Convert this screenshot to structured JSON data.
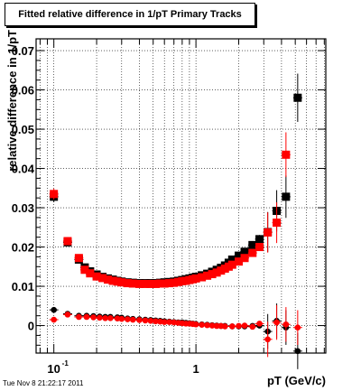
{
  "title": "Fitted relative difference in 1/pT  Primary Tracks",
  "timestamp": "Tue Nov  8 21:22:17 2011",
  "colors": {
    "series_black": "#000000",
    "series_red": "#ff0000",
    "grid": "#000000"
  },
  "chart_data": {
    "type": "scatter",
    "xlabel": "pT (GeV/c)",
    "ylabel": "relative difference in 1/pT",
    "x_scale": "log",
    "xlim": [
      0.075,
      8.2
    ],
    "ylim": [
      -0.007,
      0.073
    ],
    "x_ticks": [
      {
        "value": 0.1,
        "label": "10",
        "sup": "-1"
      },
      {
        "value": 1,
        "label": "1",
        "sup": ""
      }
    ],
    "y_ticks": [
      {
        "value": 0,
        "label": "0"
      },
      {
        "value": 0.01,
        "label": "0.01"
      },
      {
        "value": 0.02,
        "label": "0.02"
      },
      {
        "value": 0.03,
        "label": "0.03"
      },
      {
        "value": 0.04,
        "label": "0.04"
      },
      {
        "value": 0.05,
        "label": "0.05"
      },
      {
        "value": 0.06,
        "label": "0.06"
      },
      {
        "value": 0.07,
        "label": "0.07"
      }
    ],
    "grid": true,
    "series": [
      {
        "marker": "square",
        "color": "#000000",
        "points": [
          [
            0.1,
            0.0328
          ],
          [
            0.125,
            0.0212
          ],
          [
            0.15,
            0.0168
          ],
          [
            0.165,
            0.0148
          ],
          [
            0.18,
            0.0138
          ],
          [
            0.2,
            0.013
          ],
          [
            0.22,
            0.0124
          ],
          [
            0.24,
            0.012
          ],
          [
            0.26,
            0.0117
          ],
          [
            0.28,
            0.0114
          ],
          [
            0.3,
            0.0112
          ],
          [
            0.33,
            0.011
          ],
          [
            0.36,
            0.0109
          ],
          [
            0.4,
            0.0108
          ],
          [
            0.44,
            0.0108
          ],
          [
            0.48,
            0.0108
          ],
          [
            0.52,
            0.0108
          ],
          [
            0.56,
            0.0109
          ],
          [
            0.6,
            0.011
          ],
          [
            0.65,
            0.0111
          ],
          [
            0.7,
            0.0112
          ],
          [
            0.75,
            0.0114
          ],
          [
            0.8,
            0.0116
          ],
          [
            0.85,
            0.0118
          ],
          [
            0.9,
            0.012
          ],
          [
            0.95,
            0.0122
          ],
          [
            1.0,
            0.0124
          ],
          [
            1.1,
            0.0128
          ],
          [
            1.2,
            0.0132
          ],
          [
            1.3,
            0.0137
          ],
          [
            1.4,
            0.0142
          ],
          [
            1.5,
            0.0147
          ],
          [
            1.6,
            0.0153
          ],
          [
            1.7,
            0.016
          ],
          [
            1.8,
            0.0168
          ],
          [
            2.0,
            0.0178
          ],
          [
            2.2,
            0.0188
          ],
          [
            2.5,
            0.0205
          ],
          [
            2.8,
            0.022
          ],
          [
            3.2,
            0.0238
          ],
          [
            3.7,
            0.0292
          ],
          [
            4.3,
            0.0328
          ],
          [
            5.2,
            0.058
          ]
        ]
      },
      {
        "marker": "square",
        "color": "#ff0000",
        "points": [
          [
            0.1,
            0.0335
          ],
          [
            0.125,
            0.0215
          ],
          [
            0.15,
            0.0172
          ],
          [
            0.165,
            0.0142
          ],
          [
            0.18,
            0.0133
          ],
          [
            0.2,
            0.0125
          ],
          [
            0.22,
            0.0121
          ],
          [
            0.24,
            0.0117
          ],
          [
            0.26,
            0.0114
          ],
          [
            0.28,
            0.0112
          ],
          [
            0.3,
            0.011
          ],
          [
            0.33,
            0.0108
          ],
          [
            0.36,
            0.0107
          ],
          [
            0.4,
            0.0106
          ],
          [
            0.44,
            0.0106
          ],
          [
            0.48,
            0.0106
          ],
          [
            0.52,
            0.0106
          ],
          [
            0.56,
            0.0107
          ],
          [
            0.6,
            0.0107
          ],
          [
            0.65,
            0.0108
          ],
          [
            0.7,
            0.0109
          ],
          [
            0.75,
            0.0111
          ],
          [
            0.8,
            0.0113
          ],
          [
            0.85,
            0.0114
          ],
          [
            0.9,
            0.0116
          ],
          [
            0.95,
            0.0118
          ],
          [
            1.0,
            0.012
          ],
          [
            1.1,
            0.0123
          ],
          [
            1.2,
            0.0127
          ],
          [
            1.3,
            0.0131
          ],
          [
            1.4,
            0.0135
          ],
          [
            1.5,
            0.014
          ],
          [
            1.6,
            0.0145
          ],
          [
            1.7,
            0.015
          ],
          [
            1.8,
            0.0155
          ],
          [
            2.0,
            0.0163
          ],
          [
            2.2,
            0.0172
          ],
          [
            2.5,
            0.0185
          ],
          [
            2.8,
            0.02
          ],
          [
            3.2,
            0.0237
          ],
          [
            3.7,
            0.0262
          ],
          [
            4.3,
            0.0435
          ]
        ]
      },
      {
        "marker": "circle",
        "color": "#000000",
        "points": [
          [
            0.1,
            0.004
          ],
          [
            0.125,
            0.003
          ],
          [
            0.15,
            0.0025
          ],
          [
            0.17,
            0.0025
          ],
          [
            0.19,
            0.0024
          ],
          [
            0.21,
            0.0023
          ],
          [
            0.23,
            0.0022
          ],
          [
            0.25,
            0.0022
          ],
          [
            0.28,
            0.0021
          ],
          [
            0.3,
            0.002
          ],
          [
            0.33,
            0.0018
          ],
          [
            0.36,
            0.0017
          ],
          [
            0.4,
            0.0016
          ],
          [
            0.44,
            0.0015
          ],
          [
            0.48,
            0.0014
          ],
          [
            0.52,
            0.0013
          ],
          [
            0.56,
            0.0012
          ],
          [
            0.6,
            0.0011
          ],
          [
            0.65,
            0.001
          ],
          [
            0.7,
            0.0009
          ],
          [
            0.75,
            0.0008
          ],
          [
            0.8,
            0.0008
          ],
          [
            0.85,
            0.0007
          ],
          [
            0.9,
            0.0006
          ],
          [
            0.95,
            0.0005
          ],
          [
            1.0,
            0.0004
          ],
          [
            1.1,
            0.0003
          ],
          [
            1.2,
            0.0002
          ],
          [
            1.3,
            0.0001
          ],
          [
            1.4,
            0.0
          ],
          [
            1.5,
            -0.0001
          ],
          [
            1.6,
            -0.0001
          ],
          [
            1.8,
            -0.0002
          ],
          [
            2.0,
            -0.0002
          ],
          [
            2.2,
            -0.0002
          ],
          [
            2.5,
            -0.0001
          ],
          [
            2.8,
            0.0
          ],
          [
            3.2,
            -0.0015
          ],
          [
            3.7,
            0.0012
          ],
          [
            4.3,
            -0.0005
          ],
          [
            5.2,
            -0.0065
          ]
        ]
      },
      {
        "marker": "circle",
        "color": "#ff0000",
        "points": [
          [
            0.1,
            0.0015
          ],
          [
            0.125,
            0.0028
          ],
          [
            0.15,
            0.0022
          ],
          [
            0.17,
            0.0022
          ],
          [
            0.19,
            0.0021
          ],
          [
            0.21,
            0.002
          ],
          [
            0.23,
            0.0019
          ],
          [
            0.25,
            0.0019
          ],
          [
            0.28,
            0.0018
          ],
          [
            0.3,
            0.0017
          ],
          [
            0.33,
            0.0016
          ],
          [
            0.36,
            0.0015
          ],
          [
            0.4,
            0.0014
          ],
          [
            0.44,
            0.0013
          ],
          [
            0.48,
            0.0012
          ],
          [
            0.52,
            0.0011
          ],
          [
            0.56,
            0.001
          ],
          [
            0.6,
            0.0009
          ],
          [
            0.65,
            0.0009
          ],
          [
            0.7,
            0.0008
          ],
          [
            0.75,
            0.0007
          ],
          [
            0.8,
            0.0006
          ],
          [
            0.85,
            0.0005
          ],
          [
            0.9,
            0.0005
          ],
          [
            0.95,
            0.0004
          ],
          [
            1.0,
            0.0003
          ],
          [
            1.1,
            0.0002
          ],
          [
            1.2,
            0.0001
          ],
          [
            1.3,
            0.0
          ],
          [
            1.4,
            -0.0001
          ],
          [
            1.5,
            -0.0001
          ],
          [
            1.6,
            -0.0002
          ],
          [
            1.8,
            -0.0002
          ],
          [
            2.0,
            -0.0001
          ],
          [
            2.2,
            0.0
          ],
          [
            2.5,
            -0.0003
          ],
          [
            2.8,
            0.0005
          ],
          [
            3.2,
            -0.0035
          ],
          [
            3.7,
            0.0008
          ],
          [
            4.3,
            0.0003
          ],
          [
            5.2,
            -0.0005
          ]
        ]
      }
    ]
  }
}
